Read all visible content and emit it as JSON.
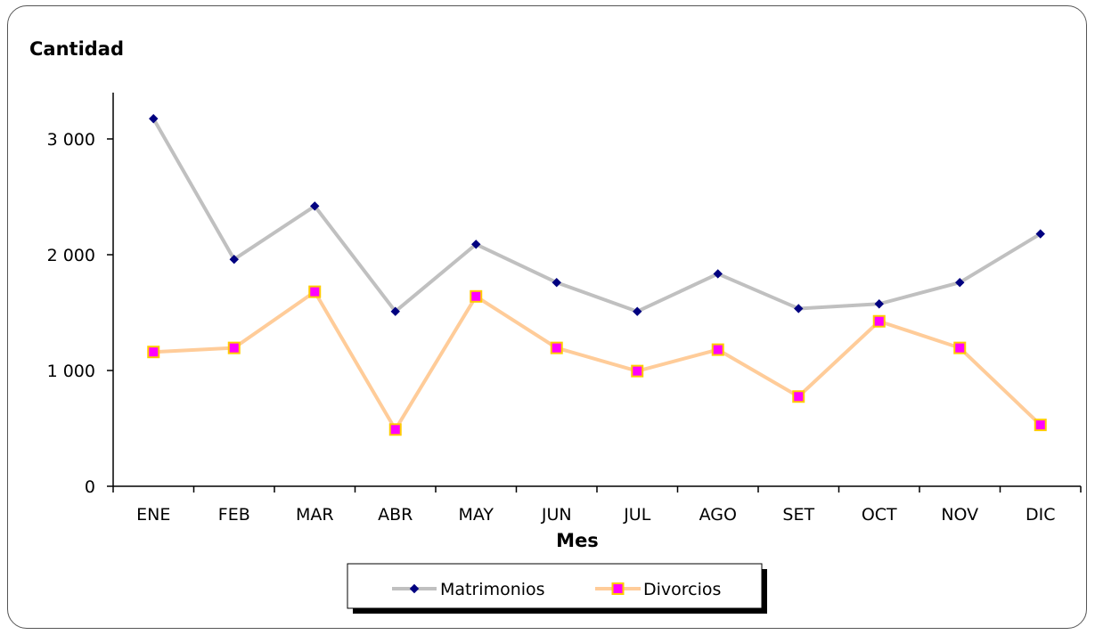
{
  "chart_data": {
    "type": "line",
    "ylabel": "Cantidad",
    "xlabel": "Mes",
    "categories": [
      "ENE",
      "FEB",
      "MAR",
      "ABR",
      "MAY",
      "JUN",
      "JUL",
      "AGO",
      "SET",
      "OCT",
      "NOV",
      "DIC"
    ],
    "ylim": [
      0,
      3400
    ],
    "yticks": [
      0,
      1000,
      2000,
      3000
    ],
    "ytick_labels": [
      "0",
      "1 000",
      "2 000",
      "3 000"
    ],
    "grid": false,
    "legend_position": "bottom",
    "series": [
      {
        "name": "Matrimonios",
        "line_color": "#C0C0C0",
        "marker": "diamond",
        "marker_color": "#000080",
        "values": [
          3175,
          1960,
          2420,
          1510,
          2090,
          1760,
          1510,
          1835,
          1535,
          1575,
          1760,
          2180
        ]
      },
      {
        "name": "Divorcios",
        "line_color": "#FFCC99",
        "marker": "square",
        "marker_color": "#FF00FF",
        "marker_edge": "#FFCC00",
        "values": [
          1160,
          1195,
          1680,
          490,
          1640,
          1195,
          995,
          1180,
          775,
          1425,
          1195,
          530
        ]
      }
    ]
  }
}
